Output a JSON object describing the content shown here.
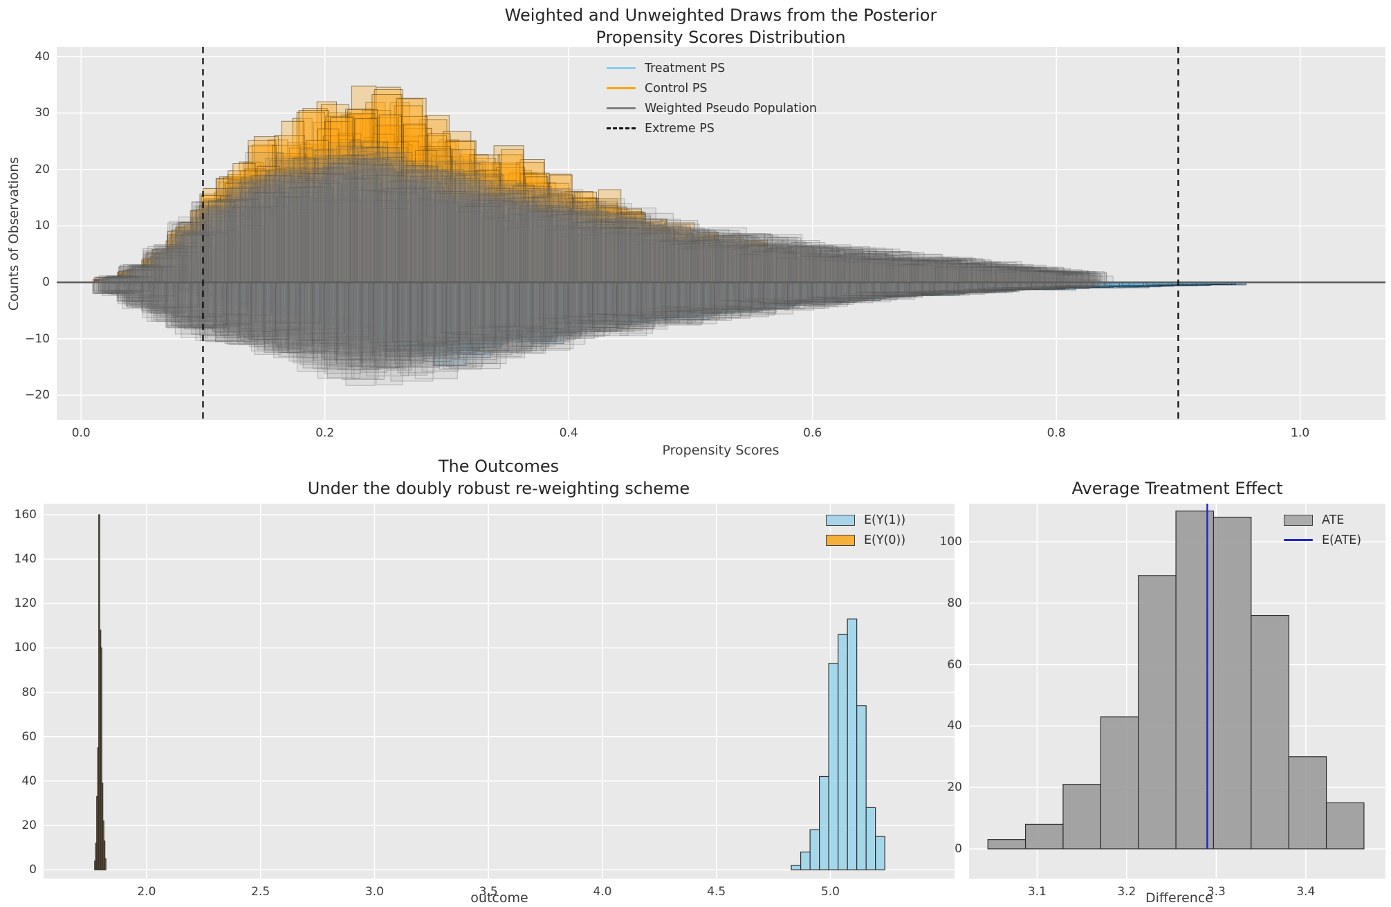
{
  "figure_bg": "#ffffff",
  "axes_bg": "#E9E9E9",
  "grid_color": "#ffffff",
  "tick_color": "#3b3b3b",
  "zero_line_color": "#5d5d5d",
  "chart_data": [
    {
      "id": "posterior-draws",
      "type": "bar",
      "title_line1": "Weighted and Unweighted Draws from the Posterior",
      "title_line2": "Propensity Scores Distribution",
      "xlabel": "Propensity Scores",
      "ylabel": "Counts of Observations",
      "xlim": [
        -0.02,
        1.07
      ],
      "ylim": [
        -24.4,
        41.7
      ],
      "grid": true,
      "legend_position": "upper center",
      "xticks": [
        {
          "value": 0.0,
          "label": "0.0"
        },
        {
          "value": 0.2,
          "label": "0.2"
        },
        {
          "value": 0.4,
          "label": "0.4"
        },
        {
          "value": 0.6,
          "label": "0.6"
        },
        {
          "value": 0.8,
          "label": "0.8"
        },
        {
          "value": 1.0,
          "label": "1.0"
        }
      ],
      "yticks": [
        {
          "value": 40,
          "label": "40"
        },
        {
          "value": 30,
          "label": "30"
        },
        {
          "value": 20,
          "label": "20"
        },
        {
          "value": 10,
          "label": "10"
        },
        {
          "value": 0,
          "label": "0"
        },
        {
          "value": -10,
          "label": "−10"
        },
        {
          "value": -20,
          "label": "−20"
        }
      ],
      "legend": [
        {
          "label": "Treatment PS",
          "sample": "line",
          "color": "#87CEEB"
        },
        {
          "label": "Control PS",
          "sample": "line",
          "color": "#FFA500"
        },
        {
          "label": "Weighted Pseudo Population",
          "sample": "line",
          "color": "#808080"
        },
        {
          "label": "Extreme PS",
          "sample": "dashed",
          "color": "#111111"
        }
      ],
      "zero_line": 0,
      "extreme_ps_lines": [
        0.1,
        0.9
      ],
      "series": [
        {
          "name": "Control PS",
          "side": "above",
          "draws": 26,
          "x_start": 0.02,
          "bin_width": 0.02,
          "fill": "rgba(255,166,20,0.30)",
          "edge": "rgba(62,42,6,0.50)",
          "mean_heights": [
            0.5,
            2,
            5,
            9,
            14,
            18,
            21,
            23,
            25,
            27,
            29,
            30,
            28,
            25,
            23,
            21,
            20,
            18,
            16,
            14.5,
            13,
            11,
            9.5,
            8.5,
            7.5,
            6.5,
            6,
            5.5,
            5,
            4.5,
            4,
            3.5,
            3,
            2.8,
            2.4,
            2,
            1.6,
            1.2,
            0.8,
            0.5
          ]
        },
        {
          "name": "Treatment PS",
          "side": "below",
          "draws": 26,
          "x_start": 0.04,
          "bin_width": 0.02,
          "fill": "rgba(110,183,222,0.32)",
          "edge": "rgba(22,48,66,0.50)",
          "mean_heights": [
            0.5,
            1,
            1.5,
            2.5,
            3.5,
            4.5,
            5.5,
            6.5,
            7.5,
            8.5,
            10,
            11,
            12,
            11.5,
            10.5,
            10,
            9,
            8,
            7.5,
            7,
            6.5,
            6,
            5.5,
            5,
            4.5,
            4.2,
            3.8,
            3.5,
            3.2,
            2.8,
            2.5,
            2.2,
            2,
            1.8,
            1.6,
            1.4,
            1.2,
            1.1,
            1,
            0.9,
            0.8,
            0.7,
            0.6,
            0.5,
            0.4
          ]
        },
        {
          "name": "Weighted Pseudo Population (above)",
          "side": "above",
          "draws": 32,
          "x_start": 0.02,
          "bin_width": 0.02,
          "fill": "rgba(127,127,127,0.11)",
          "edge": "rgba(75,75,75,0.30)",
          "mean_heights": [
            1,
            3,
            6,
            10,
            14,
            17,
            19,
            20,
            21,
            22,
            22,
            21,
            20,
            19,
            18,
            17,
            16,
            15,
            14,
            13,
            12,
            11,
            10,
            9,
            8.5,
            8,
            7.5,
            7,
            6.5,
            6,
            5.5,
            5,
            4.5,
            4.2,
            3.8,
            3.4,
            3,
            2.6,
            2.2,
            1.8
          ]
        },
        {
          "name": "Weighted Pseudo Population (below)",
          "side": "below",
          "draws": 32,
          "x_start": 0.02,
          "bin_width": 0.02,
          "fill": "rgba(127,127,127,0.11)",
          "edge": "rgba(75,75,75,0.30)",
          "mean_heights": [
            2,
            4,
            6,
            8,
            9,
            10,
            11,
            12,
            13,
            14,
            15,
            15,
            14.5,
            14,
            13,
            12,
            11.5,
            11,
            10,
            9,
            8.5,
            8,
            7,
            6.5,
            6,
            5.5,
            5,
            4.5,
            4,
            3.6,
            3.2,
            2.8,
            2.5,
            2.2,
            2,
            1.8,
            1.5,
            1.3,
            1.1,
            0.9
          ]
        }
      ]
    },
    {
      "id": "outcomes",
      "type": "histogram",
      "title_line1": "The Outcomes",
      "title_line2": "Under the doubly robust re-weighting scheme",
      "xlabel": "outcome",
      "ylabel": "",
      "xlim": [
        1.548,
        5.545
      ],
      "ylim": [
        -4,
        165
      ],
      "grid": true,
      "legend_position": "upper right",
      "xticks": [
        {
          "value": 2.0,
          "label": "2.0"
        },
        {
          "value": 2.5,
          "label": "2.5"
        },
        {
          "value": 3.0,
          "label": "3.0"
        },
        {
          "value": 3.5,
          "label": "3.5"
        },
        {
          "value": 4.0,
          "label": "4.0"
        },
        {
          "value": 4.5,
          "label": "4.5"
        },
        {
          "value": 5.0,
          "label": "5.0"
        }
      ],
      "yticks": [
        {
          "value": 0,
          "label": "0"
        },
        {
          "value": 20,
          "label": "20"
        },
        {
          "value": 40,
          "label": "40"
        },
        {
          "value": 60,
          "label": "60"
        },
        {
          "value": 80,
          "label": "80"
        },
        {
          "value": 100,
          "label": "100"
        },
        {
          "value": 120,
          "label": "120"
        },
        {
          "value": 140,
          "label": "140"
        },
        {
          "value": 160,
          "label": "160"
        }
      ],
      "legend": [
        {
          "label": "E(Y(1))",
          "sample": "patch",
          "color": "#A9D3E9"
        },
        {
          "label": "E(Y(0))",
          "sample": "patch",
          "color": "#F5B03B"
        }
      ],
      "series": [
        {
          "name": "E(Y(1))",
          "bin_start": 4.829,
          "bin_width": 0.041,
          "counts": [
            2,
            8,
            18,
            42,
            93,
            106,
            113,
            74,
            28,
            15
          ],
          "fill": "rgba(135,206,235,0.70)",
          "edge": "#2e2e2e"
        },
        {
          "name": "E(Y(0))",
          "bin_start": 1.772,
          "bin_width": 0.0045,
          "counts": [
            4,
            12,
            33,
            55,
            160,
            108,
            100,
            39,
            22,
            13,
            5
          ],
          "fill": "rgba(250,160,20,0.80)",
          "edge": "#2e2e2e"
        }
      ]
    },
    {
      "id": "ate",
      "type": "histogram",
      "title_line1": "Average Treatment Effect",
      "title_line2": "",
      "xlabel": "Difference",
      "ylabel": "",
      "xlim": [
        3.024,
        3.489
      ],
      "ylim": [
        -9.7,
        112.4
      ],
      "grid": true,
      "legend_position": "upper right",
      "xticks": [
        {
          "value": 3.1,
          "label": "3.1"
        },
        {
          "value": 3.2,
          "label": "3.2"
        },
        {
          "value": 3.3,
          "label": "3.3"
        },
        {
          "value": 3.4,
          "label": "3.4"
        }
      ],
      "yticks": [
        {
          "value": 0,
          "label": "0"
        },
        {
          "value": 20,
          "label": "20"
        },
        {
          "value": 40,
          "label": "40"
        },
        {
          "value": 60,
          "label": "60"
        },
        {
          "value": 80,
          "label": "80"
        },
        {
          "value": 100,
          "label": "100"
        }
      ],
      "legend": [
        {
          "label": "ATE",
          "sample": "patch",
          "color": "#ABABAB"
        },
        {
          "label": "E(ATE)",
          "sample": "line",
          "color": "#2424CE"
        }
      ],
      "series": [
        {
          "name": "ATE",
          "bin_start": 3.045,
          "bin_width": 0.042,
          "counts": [
            3,
            8,
            21,
            43,
            89,
            110,
            108,
            76,
            30,
            15
          ],
          "fill": "rgba(150,150,150,0.85)",
          "edge": "#2e2e2e"
        }
      ],
      "e_ate": 3.29,
      "e_ate_color": "#2424CE"
    }
  ]
}
